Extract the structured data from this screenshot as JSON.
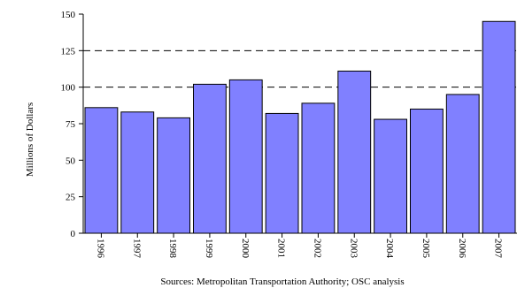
{
  "chart_data": {
    "type": "bar",
    "categories": [
      "1996",
      "1997",
      "1998",
      "1999",
      "2000",
      "2001",
      "2002",
      "2003",
      "2004",
      "2005",
      "2006",
      "2007"
    ],
    "values": [
      86,
      83,
      79,
      102,
      105,
      82,
      89,
      111,
      78,
      85,
      95,
      145
    ],
    "ylabel": "Millions of Dollars",
    "xlabel": "",
    "title": "",
    "ylim": [
      0,
      150
    ],
    "yticks": [
      0,
      25,
      50,
      75,
      100,
      125,
      150
    ],
    "dashed_gridlines_at": [
      100,
      125
    ],
    "bar_color": "#8080ff",
    "bar_edge_color": "#000000",
    "legend": "none",
    "source": "Sources: Metropolitan Transportation Authority; OSC analysis"
  }
}
